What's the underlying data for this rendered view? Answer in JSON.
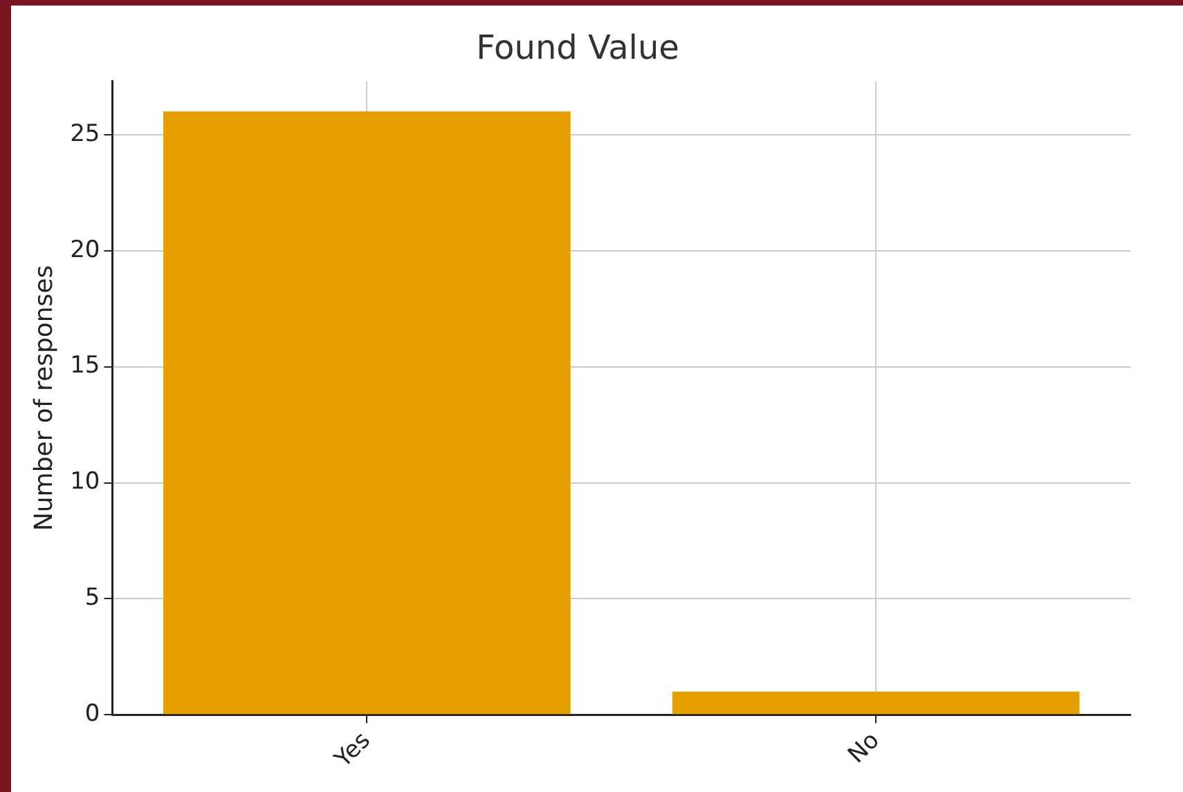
{
  "chart_data": {
    "type": "bar",
    "title": "Found Value",
    "ylabel": "Number of responses",
    "categories": [
      "Yes",
      "No"
    ],
    "values": [
      26,
      1
    ],
    "color": "#e69f00",
    "ylim": [
      0,
      27.3
    ],
    "yticks": [
      0,
      5,
      10,
      15,
      20,
      25
    ],
    "grid": true,
    "legend": false
  }
}
